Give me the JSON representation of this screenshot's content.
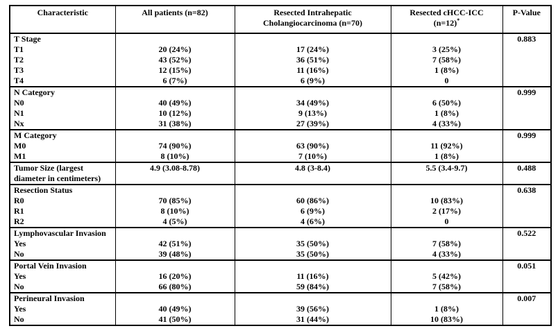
{
  "table": {
    "header": [
      {
        "lines": [
          "Characteristic"
        ]
      },
      {
        "lines": [
          "All patients (n=82)"
        ]
      },
      {
        "lines": [
          "Resected Intrahepatic",
          "Cholangiocarcinoma (n=70)"
        ]
      },
      {
        "lines": [
          "Resected cHCC-ICC",
          "(n=12)"
        ],
        "sup": "*"
      },
      {
        "lines": [
          "P-Value"
        ]
      }
    ],
    "sections": [
      {
        "label": "T Stage",
        "p_value": "0.883",
        "rows": [
          {
            "label": "T1",
            "values": [
              "20 (24%)",
              "17 (24%)",
              "3 (25%)"
            ]
          },
          {
            "label": "T2",
            "values": [
              "43 (52%)",
              "36 (51%)",
              "7 (58%)"
            ]
          },
          {
            "label": "T3",
            "values": [
              "12 (15%)",
              "11 (16%)",
              "1 (8%)"
            ]
          },
          {
            "label": "T4",
            "values": [
              "6 (7%)",
              "6 (9%)",
              "0"
            ]
          }
        ]
      },
      {
        "label": "N Category",
        "p_value": "0.999",
        "rows": [
          {
            "label": "N0",
            "values": [
              "40 (49%)",
              "34 (49%)",
              "6 (50%)"
            ]
          },
          {
            "label": "N1",
            "values": [
              "10 (12%)",
              "9 (13%)",
              "1 (8%)"
            ]
          },
          {
            "label": "Nx",
            "values": [
              "31 (38%)",
              "27 (39%)",
              "4 (33%)"
            ]
          }
        ]
      },
      {
        "label": "M Category",
        "p_value": "0.999",
        "rows": [
          {
            "label": "M0",
            "values": [
              "74 (90%)",
              "63 (90%)",
              "11 (92%)"
            ]
          },
          {
            "label": "M1",
            "values": [
              "8 (10%)",
              "7 (10%)",
              "1 (8%)"
            ]
          }
        ]
      },
      {
        "label": "Tumor Size (largest diameter in centimeters)",
        "p_value": "0.488",
        "values": [
          "4.9 (3.08-8.78)",
          "4.8 (3-8.4)",
          "5.5 (3.4-9.7)"
        ],
        "rows": []
      },
      {
        "label": "Resection Status",
        "p_value": "0.638",
        "rows": [
          {
            "label": "R0",
            "values": [
              "70 (85%)",
              "60 (86%)",
              "10 (83%)"
            ]
          },
          {
            "label": "R1",
            "values": [
              "8 (10%)",
              "6 (9%)",
              "2 (17%)"
            ]
          },
          {
            "label": "R2",
            "values": [
              "4 (5%)",
              "4 (6%)",
              "0"
            ]
          }
        ]
      },
      {
        "label": "Lymphovascular Invasion",
        "p_value": "0.522",
        "rows": [
          {
            "label": "Yes",
            "values": [
              "42 (51%)",
              "35 (50%)",
              "7 (58%)"
            ]
          },
          {
            "label": "No",
            "values": [
              "39 (48%)",
              "35 (50%)",
              "4 (33%)"
            ]
          }
        ]
      },
      {
        "label": "Portal Vein Invasion",
        "p_value": "0.051",
        "rows": [
          {
            "label": "Yes",
            "values": [
              "16 (20%)",
              "11 (16%)",
              "5 (42%)"
            ]
          },
          {
            "label": "No",
            "values": [
              "66 (80%)",
              "59 (84%)",
              "7 (58%)"
            ]
          }
        ]
      },
      {
        "label": "Perineural Invasion",
        "p_value": "0.007",
        "rows": [
          {
            "label": "Yes",
            "values": [
              "40 (49%)",
              "39 (56%)",
              "1 (8%)"
            ]
          },
          {
            "label": "No",
            "values": [
              "41 (50%)",
              "31 (44%)",
              "10 (83%)"
            ]
          }
        ]
      }
    ]
  }
}
